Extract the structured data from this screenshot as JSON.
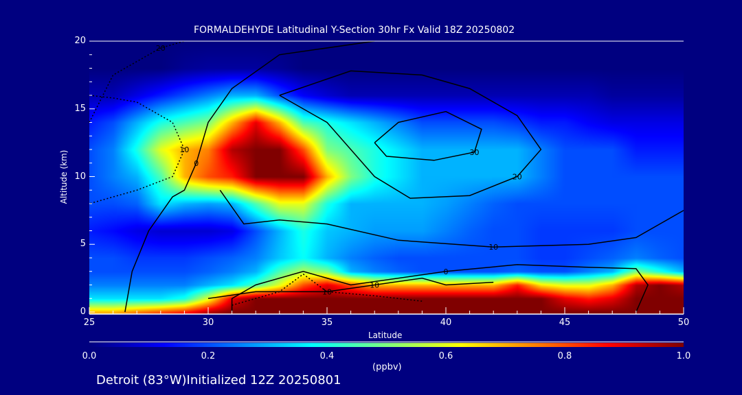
{
  "chart_data": {
    "type": "heatmap",
    "title": "FORMALDEHYDE Latitudinal Y-Section 30hr  Fx Valid 18Z 20250802",
    "xlabel": "Latitude",
    "ylabel": "Altitude (km)",
    "xlim": [
      25,
      50
    ],
    "ylim": [
      0,
      20
    ],
    "xticks": [
      "25",
      "30",
      "35",
      "40",
      "45",
      "50"
    ],
    "yticks": [
      "0",
      "5",
      "10",
      "15",
      "20"
    ],
    "colorbar": {
      "label": "(ppbv)",
      "range": [
        0.0,
        1.0
      ],
      "ticks": [
        "0.0",
        "0.2",
        "0.4",
        "0.6",
        "0.8",
        "1.0"
      ]
    },
    "lat": [
      25,
      26,
      27,
      28,
      29,
      30,
      31,
      32,
      33,
      34,
      35,
      36,
      37,
      38,
      39,
      40,
      41,
      42,
      43,
      44,
      45,
      46,
      47,
      48,
      49,
      50
    ],
    "alt": [
      0,
      1,
      2,
      3,
      4,
      6,
      8,
      10,
      12,
      14,
      16,
      18,
      20
    ],
    "values": [
      [
        0.7,
        0.7,
        0.75,
        0.8,
        0.85,
        0.95,
        1,
        1,
        1,
        1,
        1,
        1,
        1,
        1,
        1,
        1,
        1,
        1,
        1,
        1,
        1,
        1,
        1,
        1,
        1,
        1
      ],
      [
        0.35,
        0.35,
        0.35,
        0.35,
        0.4,
        0.6,
        0.9,
        1,
        1,
        1,
        1,
        1,
        1,
        1,
        1,
        1,
        1,
        1,
        1,
        1,
        0.9,
        0.85,
        0.9,
        1,
        1,
        1
      ],
      [
        0.25,
        0.25,
        0.25,
        0.25,
        0.25,
        0.3,
        0.35,
        0.45,
        0.6,
        0.8,
        0.9,
        0.8,
        0.7,
        0.7,
        0.7,
        0.7,
        0.7,
        0.7,
        0.85,
        0.65,
        0.6,
        0.6,
        0.7,
        0.95,
        1,
        0.95
      ],
      [
        0.2,
        0.2,
        0.2,
        0.2,
        0.2,
        0.22,
        0.25,
        0.3,
        0.45,
        0.55,
        0.5,
        0.3,
        0.25,
        0.22,
        0.2,
        0.2,
        0.2,
        0.2,
        0.22,
        0.2,
        0.2,
        0.25,
        0.3,
        0.5,
        0.4,
        0.3
      ],
      [
        0.2,
        0.2,
        0.18,
        0.18,
        0.18,
        0.2,
        0.22,
        0.25,
        0.32,
        0.38,
        0.3,
        0.25,
        0.22,
        0.2,
        0.2,
        0.2,
        0.2,
        0.2,
        0.2,
        0.18,
        0.18,
        0.2,
        0.22,
        0.25,
        0.22,
        0.2
      ],
      [
        0.15,
        0.13,
        0.1,
        0.08,
        0.08,
        0.08,
        0.1,
        0.2,
        0.3,
        0.4,
        0.32,
        0.3,
        0.28,
        0.28,
        0.28,
        0.25,
        0.22,
        0.2,
        0.2,
        0.18,
        0.18,
        0.18,
        0.18,
        0.2,
        0.2,
        0.2
      ],
      [
        0.2,
        0.2,
        0.22,
        0.35,
        0.3,
        0.28,
        0.3,
        0.45,
        0.6,
        0.6,
        0.4,
        0.3,
        0.3,
        0.3,
        0.3,
        0.28,
        0.25,
        0.22,
        0.2,
        0.2,
        0.2,
        0.2,
        0.2,
        0.2,
        0.2,
        0.2
      ],
      [
        0.2,
        0.25,
        0.3,
        0.45,
        0.7,
        0.8,
        0.85,
        1,
        1,
        1,
        0.7,
        0.5,
        0.4,
        0.35,
        0.3,
        0.3,
        0.3,
        0.3,
        0.3,
        0.25,
        0.2,
        0.2,
        0.2,
        0.2,
        0.2,
        0.2
      ],
      [
        0.2,
        0.25,
        0.4,
        0.6,
        0.7,
        0.75,
        0.95,
        1,
        1,
        0.8,
        0.5,
        0.45,
        0.4,
        0.35,
        0.3,
        0.3,
        0.3,
        0.3,
        0.3,
        0.25,
        0.2,
        0.2,
        0.2,
        0.15,
        0.15,
        0.15
      ],
      [
        0.15,
        0.2,
        0.3,
        0.4,
        0.45,
        0.5,
        0.7,
        0.9,
        0.7,
        0.45,
        0.4,
        0.35,
        0.3,
        0.25,
        0.2,
        0.2,
        0.2,
        0.2,
        0.18,
        0.15,
        0.15,
        0.12,
        0.1,
        0.1,
        0.1,
        0.1
      ],
      [
        0.05,
        0.05,
        0.1,
        0.15,
        0.2,
        0.25,
        0.3,
        0.3,
        0.2,
        0.12,
        0.08,
        0.05,
        0.05,
        0.05,
        0.05,
        0.05,
        0.05,
        0.05,
        0.05,
        0.05,
        0.05,
        0.05,
        0.03,
        0.03,
        0.03,
        0.03
      ],
      [
        0,
        0,
        0,
        0,
        0.02,
        0.03,
        0.03,
        0.03,
        0.02,
        0,
        0,
        0,
        0,
        0,
        0,
        0,
        0,
        0,
        0,
        0,
        0,
        0,
        0,
        0,
        0,
        0
      ],
      [
        0,
        0,
        0,
        0,
        0,
        0,
        0,
        0,
        0,
        0,
        0,
        0,
        0,
        0,
        0,
        0,
        0,
        0,
        0,
        0,
        0,
        0,
        0,
        0,
        0,
        0
      ]
    ],
    "contours": [
      {
        "label": "0",
        "dashed": false,
        "points": [
          [
            26.5,
            0
          ],
          [
            26.8,
            3
          ],
          [
            27.5,
            6
          ],
          [
            28.5,
            8.5
          ],
          [
            29,
            9
          ],
          [
            29.5,
            11
          ],
          [
            30,
            14
          ],
          [
            31,
            16.5
          ],
          [
            33,
            19
          ],
          [
            37,
            20
          ]
        ]
      },
      {
        "label": "0",
        "dashed": false,
        "points": [
          [
            31,
            0
          ],
          [
            31,
            1
          ],
          [
            32,
            2
          ],
          [
            34,
            3
          ],
          [
            36,
            2
          ],
          [
            40,
            3
          ],
          [
            43,
            3.5
          ],
          [
            46,
            3.3
          ],
          [
            48,
            3.2
          ],
          [
            48.5,
            2
          ],
          [
            48,
            0
          ]
        ]
      },
      {
        "label": "10",
        "dashed": false,
        "points": [
          [
            30,
            1
          ],
          [
            32,
            1.5
          ],
          [
            35,
            1.5
          ],
          [
            37,
            2
          ],
          [
            39,
            2.5
          ],
          [
            40,
            2
          ],
          [
            42,
            2.2
          ]
        ]
      },
      {
        "label": "10",
        "dashed": false,
        "points": [
          [
            30.5,
            9
          ],
          [
            31.5,
            6.5
          ],
          [
            33,
            6.8
          ],
          [
            35,
            6.5
          ],
          [
            38,
            5.3
          ],
          [
            42,
            4.8
          ],
          [
            46,
            5
          ],
          [
            48,
            5.5
          ],
          [
            49,
            6.5
          ],
          [
            50,
            7.5
          ]
        ]
      },
      {
        "label": "20",
        "dashed": false,
        "points": [
          [
            33,
            16
          ],
          [
            35,
            14
          ],
          [
            36,
            12
          ],
          [
            37,
            10
          ],
          [
            38.5,
            8.4
          ],
          [
            41,
            8.6
          ],
          [
            43,
            10
          ],
          [
            44,
            12
          ],
          [
            43,
            14.5
          ],
          [
            41,
            16.5
          ],
          [
            39,
            17.5
          ],
          [
            36,
            17.8
          ],
          [
            33,
            16
          ]
        ]
      },
      {
        "label": "30",
        "dashed": false,
        "points": [
          [
            37,
            12.5
          ],
          [
            38,
            14
          ],
          [
            40,
            14.8
          ],
          [
            41.5,
            13.5
          ],
          [
            41.2,
            11.8
          ],
          [
            39.5,
            11.2
          ],
          [
            37.5,
            11.5
          ],
          [
            37,
            12.5
          ]
        ]
      },
      {
        "label": "10",
        "dashed": true,
        "points": [
          [
            25,
            16
          ],
          [
            26,
            15.8
          ],
          [
            27,
            15.5
          ],
          [
            28.5,
            14
          ],
          [
            29,
            12
          ],
          [
            28.5,
            10
          ],
          [
            27,
            9
          ],
          [
            25,
            8
          ]
        ]
      },
      {
        "label": "20",
        "dashed": true,
        "points": [
          [
            25,
            14
          ],
          [
            26,
            17.5
          ],
          [
            28,
            19.5
          ],
          [
            29,
            20
          ]
        ]
      },
      {
        "label": "10",
        "dashed": true,
        "points": [
          [
            31,
            0.5
          ],
          [
            33,
            1.5
          ],
          [
            34,
            2.8
          ],
          [
            35,
            1.5
          ],
          [
            37,
            1.2
          ],
          [
            39,
            0.8
          ]
        ]
      }
    ]
  },
  "footer": {
    "location_text": "Detroit (83°W)Initialized 12Z 20250801"
  }
}
